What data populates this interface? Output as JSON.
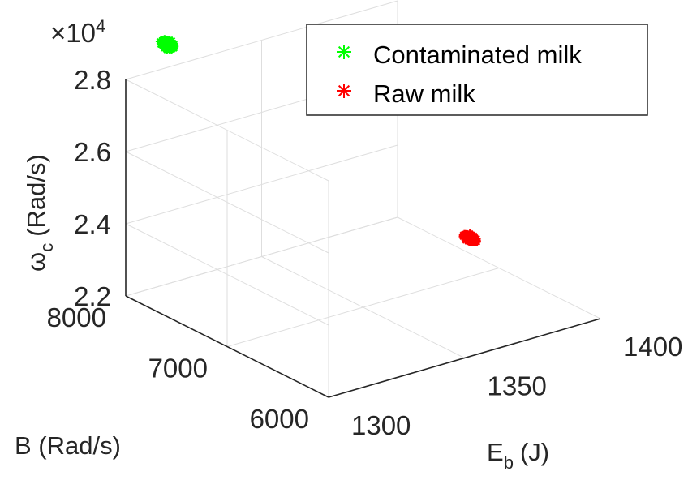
{
  "chart_data": {
    "type": "scatter",
    "projection": "3d",
    "title": "",
    "xlabel": "E",
    "xlabel_sub": "b",
    "xlabel_unit": "(J)",
    "ylabel": "B (Rad/s)",
    "zlabel_symbol": "ω",
    "zlabel_sub": "c",
    "zlabel_unit": "(Rad/s)",
    "xlim": [
      1300,
      1400
    ],
    "ylim": [
      6000,
      8000
    ],
    "zlim": [
      22000,
      28000
    ],
    "x_ticks": [
      "1300",
      "1350",
      "1400"
    ],
    "y_ticks": [
      "6000",
      "7000",
      "8000"
    ],
    "z_ticks": [
      "2.2",
      "2.4",
      "2.6",
      "2.8"
    ],
    "z_exponent_prefix": "×10",
    "z_exponent_power": "4",
    "grid": true,
    "legend_position": "top-right",
    "series": [
      {
        "name": "Contaminated milk",
        "color": "#00ff00",
        "marker": "asterisk",
        "center": {
          "x": 1338,
          "y": 8600,
          "z": 27300
        },
        "spread": {
          "x": 2,
          "y": 60,
          "z": 120
        }
      },
      {
        "name": "Raw milk",
        "color": "#ff0000",
        "marker": "asterisk",
        "center": {
          "x": 1382,
          "y": 6800,
          "z": 23500
        },
        "spread": {
          "x": 2,
          "y": 60,
          "z": 90
        }
      }
    ]
  }
}
